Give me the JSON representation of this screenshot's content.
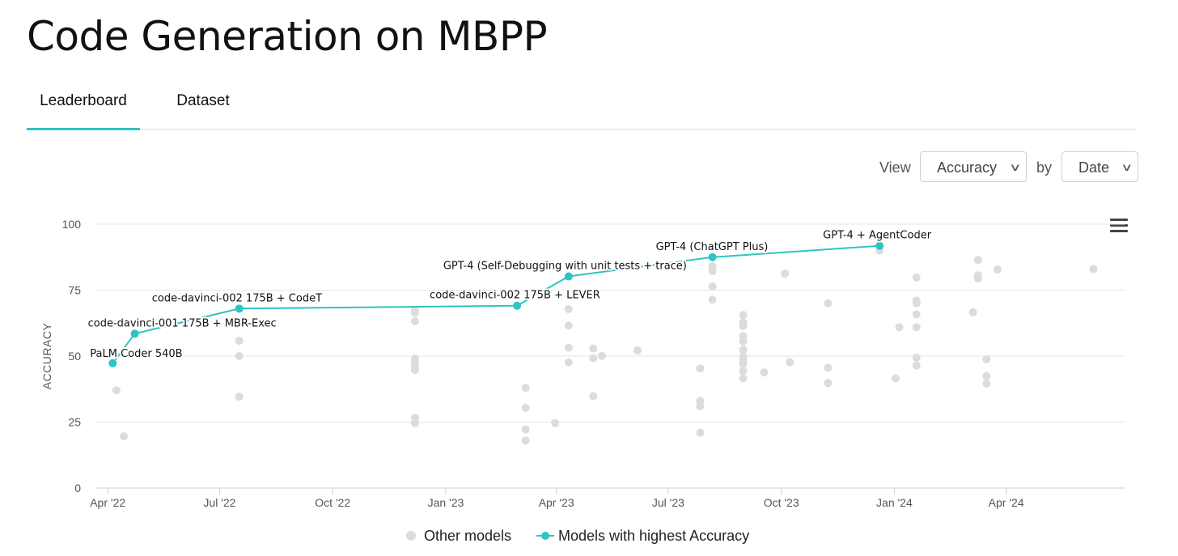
{
  "page": {
    "title": "Code Generation on MBPP"
  },
  "tabs": [
    {
      "label": "Leaderboard",
      "active": true
    },
    {
      "label": "Dataset",
      "active": false
    }
  ],
  "controls": {
    "view_label": "View",
    "view_value": "Accuracy",
    "by_label": "by",
    "by_value": "Date"
  },
  "colors": {
    "accent": "#2ec4c4",
    "other": "#dcdcdc",
    "grid": "#e6e6e6"
  },
  "chart_data": {
    "type": "scatter",
    "title": "",
    "ylabel": "ACCURACY",
    "xlabel": "",
    "ylim": [
      0,
      100
    ],
    "yticks": [
      0,
      25,
      50,
      75,
      100
    ],
    "xlim": [
      "2022-03-22",
      "2024-07-07"
    ],
    "xticks": [
      {
        "date": "2022-04-01",
        "label": "Apr '22"
      },
      {
        "date": "2022-07-01",
        "label": "Jul '22"
      },
      {
        "date": "2022-10-01",
        "label": "Oct '22"
      },
      {
        "date": "2023-01-01",
        "label": "Jan '23"
      },
      {
        "date": "2023-04-01",
        "label": "Apr '23"
      },
      {
        "date": "2023-07-01",
        "label": "Jul '23"
      },
      {
        "date": "2023-10-01",
        "label": "Oct '23"
      },
      {
        "date": "2024-01-01",
        "label": "Jan '24"
      },
      {
        "date": "2024-04-01",
        "label": "Apr '24"
      }
    ],
    "legend": [
      {
        "name": "Other models",
        "marker": "dot"
      },
      {
        "name": "Models with highest Accuracy",
        "marker": "line-dot"
      }
    ],
    "legend_position": "bottom",
    "series": [
      {
        "name": "Models with highest Accuracy",
        "points": [
          {
            "date": "2022-04-05",
            "y": 47.3,
            "label": "PaLM Coder 540B"
          },
          {
            "date": "2022-04-23",
            "y": 58.5,
            "label": "code-davinci-001 175B + MBR-Exec"
          },
          {
            "date": "2022-07-17",
            "y": 68.0,
            "label": "code-davinci-002 175B + CodeT"
          },
          {
            "date": "2023-02-28",
            "y": 69.1,
            "label": "code-davinci-002 175B + LEVER"
          },
          {
            "date": "2023-04-11",
            "y": 80.2,
            "label": "GPT-4 (Self-Debugging with unit tests + trace)"
          },
          {
            "date": "2023-08-06",
            "y": 87.5,
            "label": "GPT-4 (ChatGPT Plus)"
          },
          {
            "date": "2023-12-20",
            "y": 91.8,
            "label": "GPT-4 + AgentCoder"
          }
        ]
      },
      {
        "name": "Other models",
        "points": [
          {
            "date": "2022-04-08",
            "y": 37.0
          },
          {
            "date": "2022-04-14",
            "y": 19.6
          },
          {
            "date": "2022-07-17",
            "y": 55.8
          },
          {
            "date": "2022-07-17",
            "y": 50.0
          },
          {
            "date": "2022-07-17",
            "y": 34.6
          },
          {
            "date": "2022-12-07",
            "y": 67.2
          },
          {
            "date": "2022-12-07",
            "y": 66.4
          },
          {
            "date": "2022-12-07",
            "y": 63.2
          },
          {
            "date": "2022-12-07",
            "y": 49.0
          },
          {
            "date": "2022-12-07",
            "y": 47.8
          },
          {
            "date": "2022-12-07",
            "y": 46.2
          },
          {
            "date": "2022-12-07",
            "y": 44.8
          },
          {
            "date": "2022-12-07",
            "y": 26.6
          },
          {
            "date": "2022-12-07",
            "y": 24.6
          },
          {
            "date": "2023-03-07",
            "y": 38.0
          },
          {
            "date": "2023-03-07",
            "y": 30.4
          },
          {
            "date": "2023-03-07",
            "y": 22.2
          },
          {
            "date": "2023-03-07",
            "y": 18.0
          },
          {
            "date": "2023-03-31",
            "y": 24.6
          },
          {
            "date": "2023-04-11",
            "y": 67.8
          },
          {
            "date": "2023-04-11",
            "y": 61.6
          },
          {
            "date": "2023-04-11",
            "y": 53.2
          },
          {
            "date": "2023-04-11",
            "y": 47.6
          },
          {
            "date": "2023-05-01",
            "y": 52.9
          },
          {
            "date": "2023-05-01",
            "y": 49.2
          },
          {
            "date": "2023-05-01",
            "y": 34.8
          },
          {
            "date": "2023-05-08",
            "y": 50.1
          },
          {
            "date": "2023-06-06",
            "y": 52.2
          },
          {
            "date": "2023-07-27",
            "y": 45.3
          },
          {
            "date": "2023-07-27",
            "y": 33.0
          },
          {
            "date": "2023-07-27",
            "y": 31.0
          },
          {
            "date": "2023-07-27",
            "y": 21.0
          },
          {
            "date": "2023-08-06",
            "y": 84.1
          },
          {
            "date": "2023-08-06",
            "y": 82.2
          },
          {
            "date": "2023-08-06",
            "y": 76.4
          },
          {
            "date": "2023-08-06",
            "y": 71.4
          },
          {
            "date": "2023-08-31",
            "y": 65.6
          },
          {
            "date": "2023-08-31",
            "y": 62.8
          },
          {
            "date": "2023-08-31",
            "y": 61.4
          },
          {
            "date": "2023-08-31",
            "y": 57.6
          },
          {
            "date": "2023-08-31",
            "y": 55.6
          },
          {
            "date": "2023-08-31",
            "y": 52.4
          },
          {
            "date": "2023-08-31",
            "y": 50.0
          },
          {
            "date": "2023-08-31",
            "y": 48.4
          },
          {
            "date": "2023-08-31",
            "y": 47.0
          },
          {
            "date": "2023-08-31",
            "y": 44.4
          },
          {
            "date": "2023-08-31",
            "y": 41.6
          },
          {
            "date": "2023-09-17",
            "y": 43.8
          },
          {
            "date": "2023-10-04",
            "y": 81.3
          },
          {
            "date": "2023-10-08",
            "y": 47.7
          },
          {
            "date": "2023-11-08",
            "y": 70.0
          },
          {
            "date": "2023-11-08",
            "y": 45.6
          },
          {
            "date": "2023-11-08",
            "y": 39.8
          },
          {
            "date": "2023-12-20",
            "y": 90.0
          },
          {
            "date": "2024-01-02",
            "y": 41.6
          },
          {
            "date": "2024-01-05",
            "y": 60.9
          },
          {
            "date": "2024-01-19",
            "y": 79.8
          },
          {
            "date": "2024-01-19",
            "y": 71.0
          },
          {
            "date": "2024-01-19",
            "y": 70.0
          },
          {
            "date": "2024-01-19",
            "y": 65.8
          },
          {
            "date": "2024-01-19",
            "y": 60.9
          },
          {
            "date": "2024-01-19",
            "y": 49.4
          },
          {
            "date": "2024-01-19",
            "y": 46.4
          },
          {
            "date": "2024-03-05",
            "y": 66.6
          },
          {
            "date": "2024-03-09",
            "y": 86.4
          },
          {
            "date": "2024-03-09",
            "y": 80.6
          },
          {
            "date": "2024-03-09",
            "y": 79.4
          },
          {
            "date": "2024-03-16",
            "y": 48.8
          },
          {
            "date": "2024-03-16",
            "y": 42.4
          },
          {
            "date": "2024-03-16",
            "y": 39.6
          },
          {
            "date": "2024-03-25",
            "y": 82.8
          },
          {
            "date": "2024-06-11",
            "y": 83.0
          }
        ]
      }
    ]
  }
}
